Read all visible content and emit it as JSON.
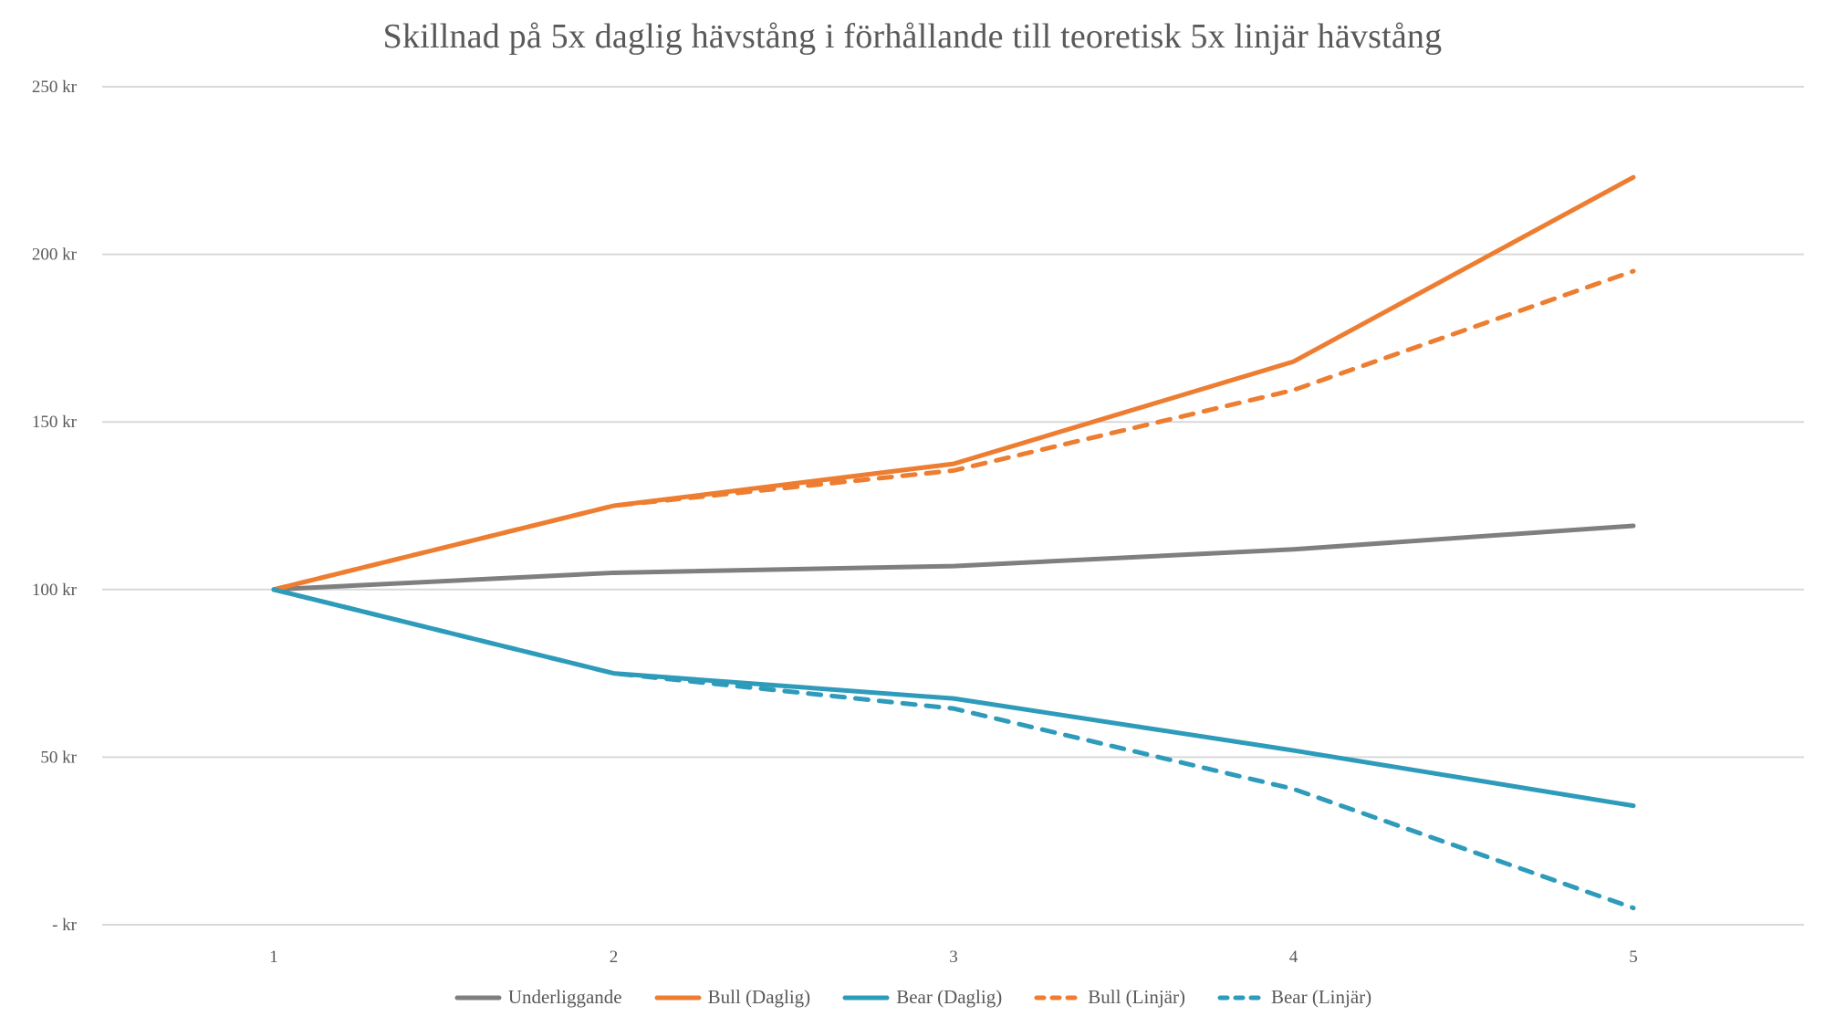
{
  "chart_data": {
    "type": "line",
    "title": "Skillnad på 5x daglig hävstång i förhållande till teoretisk 5x linjär hävstång",
    "xlabel": "",
    "ylabel": "",
    "x": [
      1,
      2,
      3,
      4,
      5
    ],
    "categories": [
      "1",
      "2",
      "3",
      "4",
      "5"
    ],
    "ylim": [
      0,
      250
    ],
    "yticks": [
      0,
      50,
      100,
      150,
      200,
      250
    ],
    "ytick_labels": [
      "-  kr",
      "50 kr",
      "100 kr",
      "150 kr",
      "200 kr",
      "250 kr"
    ],
    "grid": true,
    "legend_position": "bottom",
    "series": [
      {
        "name": "Underliggande",
        "color": "#7f7f7f",
        "style": "solid",
        "values": [
          100,
          105,
          107,
          112,
          119
        ]
      },
      {
        "name": "Bull (Daglig)",
        "color": "#ed7d31",
        "style": "solid",
        "values": [
          100,
          125,
          137.5,
          168,
          223
        ]
      },
      {
        "name": "Bear (Daglig)",
        "color": "#2e9bbb",
        "style": "solid",
        "values": [
          100,
          75,
          67.5,
          52,
          35.5
        ]
      },
      {
        "name": "Bull (Linjär)",
        "color": "#ed7d31",
        "style": "dashed",
        "values": [
          100,
          125,
          135.5,
          159.5,
          195
        ]
      },
      {
        "name": "Bear (Linjär)",
        "color": "#2e9bbb",
        "style": "dashed",
        "values": [
          100,
          75,
          64.5,
          40.5,
          5
        ]
      }
    ]
  }
}
